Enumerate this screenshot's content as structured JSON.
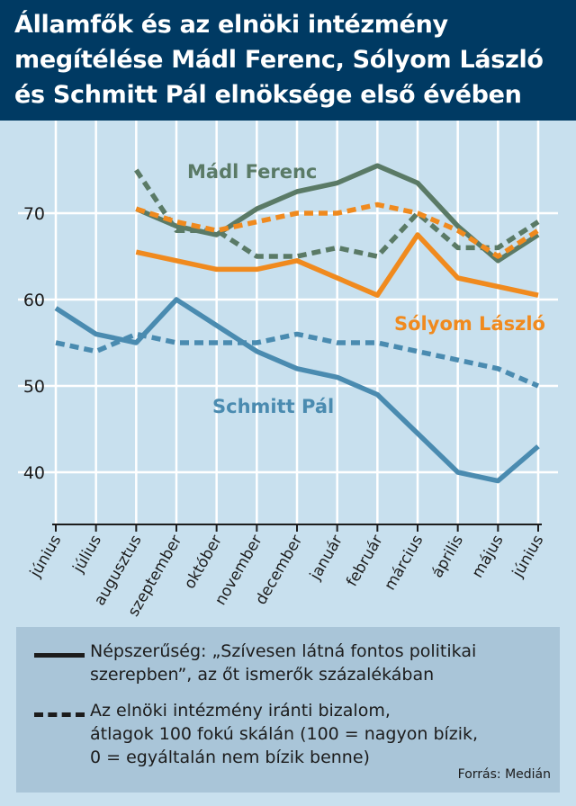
{
  "header": {
    "title_lines": [
      "Államfők és az elnöki intézmény",
      "megítélése Mádl Ferenc, Sólyom László",
      "és Schmitt Pál elnöksége első évében"
    ]
  },
  "legend": {
    "solid_text": "Népszerűség: „Szívesen látná fontos politikai\nszerepben”, az őt ismerők százalékában",
    "dashed_text": "Az elnöki intézmény iránti bizalom,\nátlagok 100 fokú skálán (100 = nagyon bízik,\n0 = egyáltalán nem bízik benne)",
    "source": "Forrás: Medián"
  },
  "colors": {
    "background": "#c8e0ee",
    "header": "#003a63",
    "madl": "#5a7a66",
    "solyom": "#f08a1e",
    "schmitt": "#4a8bb0",
    "grid": "#ffffff"
  },
  "chart_data": {
    "type": "line",
    "categories": [
      "június",
      "július",
      "augusztus",
      "szeptember",
      "október",
      "november",
      "december",
      "január",
      "február",
      "március",
      "április",
      "május",
      "június"
    ],
    "yticks": [
      40,
      50,
      60,
      70
    ],
    "ylim": [
      35,
      76
    ],
    "grid": true,
    "series": [
      {
        "name": "Mádl Ferenc",
        "key": "madl",
        "measure": "popularity",
        "style": "solid",
        "values": [
          null,
          null,
          70.5,
          68.5,
          67.5,
          70.5,
          72.5,
          73.5,
          75.5,
          73.5,
          68.5,
          64.5,
          67.5
        ]
      },
      {
        "name": "Mádl Ferenc",
        "key": "madl",
        "measure": "trust",
        "style": "dashed",
        "values": [
          null,
          null,
          75,
          68,
          68,
          65,
          65,
          66,
          65,
          70,
          66,
          66,
          69
        ]
      },
      {
        "name": "Sólyom László",
        "key": "solyom",
        "measure": "popularity",
        "style": "solid",
        "values": [
          null,
          null,
          65.5,
          null,
          63.5,
          63.5,
          64.5,
          null,
          60.5,
          67.5,
          62.5,
          null,
          60.5
        ]
      },
      {
        "name": "Sólyom László",
        "key": "solyom",
        "measure": "trust",
        "style": "dashed",
        "values": [
          null,
          null,
          70.5,
          69,
          68,
          69,
          70,
          70,
          71,
          70,
          68,
          65,
          68
        ]
      },
      {
        "name": "Schmitt Pál",
        "key": "schmitt",
        "measure": "popularity",
        "style": "solid",
        "values": [
          59,
          56,
          55,
          60,
          null,
          54,
          52,
          51,
          49,
          null,
          40,
          39,
          43
        ]
      },
      {
        "name": "Schmitt Pál",
        "key": "schmitt",
        "measure": "trust",
        "style": "dashed",
        "values": [
          55,
          54,
          56,
          55,
          55,
          55,
          56,
          55,
          55,
          null,
          null,
          52,
          50
        ]
      }
    ],
    "labels": [
      {
        "text": "Mádl Ferenc",
        "key": "madl"
      },
      {
        "text": "Sólyom László",
        "key": "solyom"
      },
      {
        "text": "Schmitt Pál",
        "key": "schmitt"
      }
    ]
  }
}
